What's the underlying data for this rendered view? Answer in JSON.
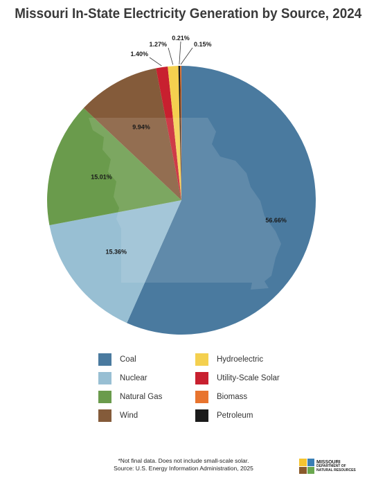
{
  "title": "Missouri In-State Electricity Generation by Source, 2024",
  "chart_data": {
    "type": "pie",
    "title": "Missouri In-State Electricity Generation by Source, 2024",
    "slices": [
      {
        "name": "Coal",
        "value": 56.66,
        "label": "56.66%",
        "color": "#4a7a9f"
      },
      {
        "name": "Nuclear",
        "value": 15.36,
        "label": "15.36%",
        "color": "#98bfd3"
      },
      {
        "name": "Natural Gas",
        "value": 15.01,
        "label": "15.01%",
        "color": "#6a9b4c"
      },
      {
        "name": "Wind",
        "value": 9.94,
        "label": "9.94%",
        "color": "#845b3a"
      },
      {
        "name": "Utility-Scale Solar",
        "value": 1.4,
        "label": "1.40%",
        "color": "#c8202f"
      },
      {
        "name": "Hydroelectric",
        "value": 1.27,
        "label": "1.27%",
        "color": "#f4d04f"
      },
      {
        "name": "Petroleum",
        "value": 0.21,
        "label": "0.21%",
        "color": "#1b1b1b"
      },
      {
        "name": "Biomass",
        "value": 0.15,
        "label": "0.15%",
        "color": "#e8742e"
      }
    ],
    "legend_position": "bottom"
  },
  "legend": {
    "left": [
      "Coal",
      "Nuclear",
      "Natural Gas",
      "Wind"
    ],
    "right": [
      "Hydroelectric",
      "Utility-Scale Solar",
      "Biomass",
      "Petroleum"
    ]
  },
  "footnote": {
    "line1": "*Not final data. Does not include small-scale solar.",
    "line2": "Source: U.S. Energy Information Administration, 2025"
  },
  "logo": {
    "line1": "MISSOURI",
    "line2": "DEPARTMENT OF",
    "line3": "NATURAL RESOURCES",
    "colors": [
      "#f4c430",
      "#3a7fb5",
      "#8a5a2b",
      "#6aa84f"
    ]
  }
}
